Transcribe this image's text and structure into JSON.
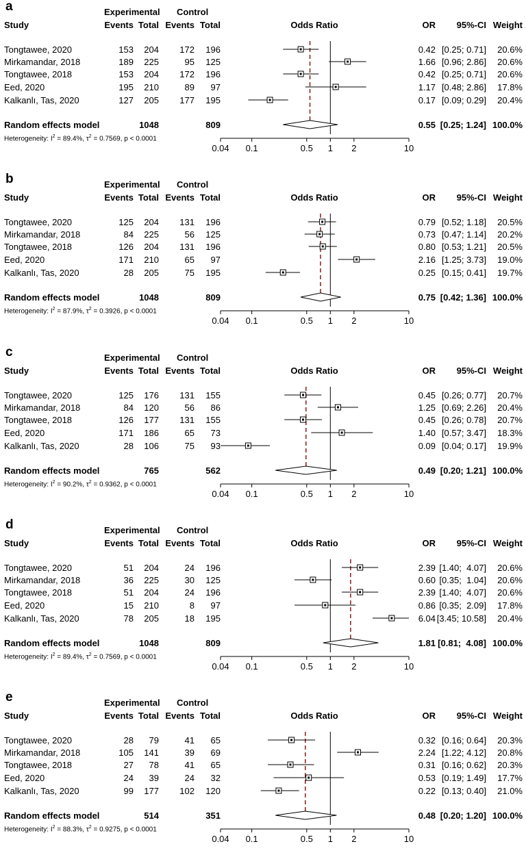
{
  "headers": {
    "experimental": "Experimental",
    "control": "Control",
    "study": "Study",
    "events": "Events",
    "total": "Total",
    "odds_ratio": "Odds Ratio",
    "or": "OR",
    "ci": "95%-CI",
    "weight": "Weight",
    "random_effects": "Random effects model",
    "het_prefix": "Heterogeneity: "
  },
  "axis": {
    "ticks": [
      0.04,
      0.1,
      0.5,
      1,
      2,
      10
    ],
    "tick_labels": [
      "0.04",
      "0.1",
      "0.5",
      "1",
      "2",
      "10"
    ],
    "xlim": [
      0.04,
      10
    ],
    "scale": "log"
  },
  "chart_data": [
    {
      "type": "forest",
      "letter": "a",
      "rows": [
        {
          "study": "Tongtawee, 2020",
          "e_ev": "153",
          "e_tot": "204",
          "c_ev": "172",
          "c_tot": "196",
          "or": 0.42,
          "lo": 0.25,
          "hi": 0.71,
          "or_text": "0.42",
          "ci_text": "[0.25; 0.71]",
          "weight": "20.6%"
        },
        {
          "study": "Mirkamandar, 2018",
          "e_ev": "189",
          "e_tot": "225",
          "c_ev": "95",
          "c_tot": "125",
          "or": 1.66,
          "lo": 0.96,
          "hi": 2.86,
          "or_text": "1.66",
          "ci_text": "[0.96; 2.86]",
          "weight": "20.6%"
        },
        {
          "study": "Tongtawee, 2018",
          "e_ev": "153",
          "e_tot": "204",
          "c_ev": "172",
          "c_tot": "196",
          "or": 0.42,
          "lo": 0.25,
          "hi": 0.71,
          "or_text": "0.42",
          "ci_text": "[0.25; 0.71]",
          "weight": "20.6%"
        },
        {
          "study": "Eed, 2020",
          "e_ev": "195",
          "e_tot": "210",
          "c_ev": "89",
          "c_tot": "97",
          "or": 1.17,
          "lo": 0.48,
          "hi": 2.86,
          "or_text": "1.17",
          "ci_text": "[0.48; 2.86]",
          "weight": "17.8%"
        },
        {
          "study": "Kalkanlı, Tas, 2020",
          "e_ev": "127",
          "e_tot": "205",
          "c_ev": "177",
          "c_tot": "195",
          "or": 0.17,
          "lo": 0.09,
          "hi": 0.29,
          "or_text": "0.17",
          "ci_text": "[0.09; 0.29]",
          "weight": "20.4%"
        }
      ],
      "pooled": {
        "e_tot": "1048",
        "c_tot": "809",
        "or": 0.55,
        "lo": 0.25,
        "hi": 1.24,
        "or_text": "0.55",
        "ci_text": "[0.25; 1.24]",
        "weight": "100.0%"
      },
      "heterogeneity": {
        "i2": "89.4%",
        "tau2": "0.7569",
        "p": "p < 0.0001"
      }
    },
    {
      "type": "forest",
      "letter": "b",
      "rows": [
        {
          "study": "Tongtawee, 2020",
          "e_ev": "125",
          "e_tot": "204",
          "c_ev": "131",
          "c_tot": "196",
          "or": 0.79,
          "lo": 0.52,
          "hi": 1.18,
          "or_text": "0.79",
          "ci_text": "[0.52; 1.18]",
          "weight": "20.5%"
        },
        {
          "study": "Mirkamandar, 2018",
          "e_ev": "84",
          "e_tot": "225",
          "c_ev": "56",
          "c_tot": "125",
          "or": 0.73,
          "lo": 0.47,
          "hi": 1.14,
          "or_text": "0.73",
          "ci_text": "[0.47; 1.14]",
          "weight": "20.2%"
        },
        {
          "study": "Tongtawee, 2018",
          "e_ev": "126",
          "e_tot": "204",
          "c_ev": "131",
          "c_tot": "196",
          "or": 0.8,
          "lo": 0.53,
          "hi": 1.21,
          "or_text": "0.80",
          "ci_text": "[0.53; 1.21]",
          "weight": "20.5%"
        },
        {
          "study": "Eed, 2020",
          "e_ev": "171",
          "e_tot": "210",
          "c_ev": "65",
          "c_tot": "97",
          "or": 2.16,
          "lo": 1.25,
          "hi": 3.73,
          "or_text": "2.16",
          "ci_text": "[1.25; 3.73]",
          "weight": "19.0%"
        },
        {
          "study": "Kalkanlı, Tas, 2020",
          "e_ev": "28",
          "e_tot": "205",
          "c_ev": "75",
          "c_tot": "195",
          "or": 0.25,
          "lo": 0.15,
          "hi": 0.41,
          "or_text": "0.25",
          "ci_text": "[0.15; 0.41]",
          "weight": "19.7%"
        }
      ],
      "pooled": {
        "e_tot": "1048",
        "c_tot": "809",
        "or": 0.75,
        "lo": 0.42,
        "hi": 1.36,
        "or_text": "0.75",
        "ci_text": "[0.42; 1.36]",
        "weight": "100.0%"
      },
      "heterogeneity": {
        "i2": "87.9%",
        "tau2": "0.3926",
        "p": "p < 0.0001"
      }
    },
    {
      "type": "forest",
      "letter": "c",
      "rows": [
        {
          "study": "Tongtawee, 2020",
          "e_ev": "125",
          "e_tot": "176",
          "c_ev": "131",
          "c_tot": "155",
          "or": 0.45,
          "lo": 0.26,
          "hi": 0.77,
          "or_text": "0.45",
          "ci_text": "[0.26; 0.77]",
          "weight": "20.7%"
        },
        {
          "study": "Mirkamandar, 2018",
          "e_ev": "84",
          "e_tot": "120",
          "c_ev": "56",
          "c_tot": "86",
          "or": 1.25,
          "lo": 0.69,
          "hi": 2.26,
          "or_text": "1.25",
          "ci_text": "[0.69; 2.26]",
          "weight": "20.4%"
        },
        {
          "study": "Tongtawee, 2018",
          "e_ev": "126",
          "e_tot": "177",
          "c_ev": "131",
          "c_tot": "155",
          "or": 0.45,
          "lo": 0.26,
          "hi": 0.78,
          "or_text": "0.45",
          "ci_text": "[0.26; 0.78]",
          "weight": "20.7%"
        },
        {
          "study": "Eed, 2020",
          "e_ev": "171",
          "e_tot": "186",
          "c_ev": "65",
          "c_tot": "73",
          "or": 1.4,
          "lo": 0.57,
          "hi": 3.47,
          "or_text": "1.40",
          "ci_text": "[0.57; 3.47]",
          "weight": "18.3%"
        },
        {
          "study": "Kalkanlı, Tas, 2020",
          "e_ev": "28",
          "e_tot": "106",
          "c_ev": "75",
          "c_tot": "93",
          "or": 0.09,
          "lo": 0.04,
          "hi": 0.17,
          "or_text": "0.09",
          "ci_text": "[0.04; 0.17]",
          "weight": "19.9%"
        }
      ],
      "pooled": {
        "e_tot": "765",
        "c_tot": "562",
        "or": 0.49,
        "lo": 0.2,
        "hi": 1.21,
        "or_text": "0.49",
        "ci_text": "[0.20; 1.21]",
        "weight": "100.0%"
      },
      "heterogeneity": {
        "i2": "90.2%",
        "tau2": "0.9362",
        "p": "p < 0.0001"
      }
    },
    {
      "type": "forest",
      "letter": "d",
      "rows": [
        {
          "study": "Tongtawee, 2020",
          "e_ev": "51",
          "e_tot": "204",
          "c_ev": "24",
          "c_tot": "196",
          "or": 2.39,
          "lo": 1.4,
          "hi": 4.07,
          "or_text": "2.39",
          "ci_text": "[1.40;  4.07]",
          "weight": "20.6%"
        },
        {
          "study": "Mirkamandar, 2018",
          "e_ev": "36",
          "e_tot": "225",
          "c_ev": "30",
          "c_tot": "125",
          "or": 0.6,
          "lo": 0.35,
          "hi": 1.04,
          "or_text": "0.60",
          "ci_text": "[0.35;  1.04]",
          "weight": "20.6%"
        },
        {
          "study": "Tongtawee, 2018",
          "e_ev": "51",
          "e_tot": "204",
          "c_ev": "24",
          "c_tot": "196",
          "or": 2.39,
          "lo": 1.4,
          "hi": 4.07,
          "or_text": "2.39",
          "ci_text": "[1.40;  4.07]",
          "weight": "20.6%"
        },
        {
          "study": "Eed, 2020",
          "e_ev": "15",
          "e_tot": "210",
          "c_ev": "8",
          "c_tot": "97",
          "or": 0.86,
          "lo": 0.35,
          "hi": 2.09,
          "or_text": "0.86",
          "ci_text": "[0.35;  2.09]",
          "weight": "17.8%"
        },
        {
          "study": "Kalkanlı, Tas, 2020",
          "e_ev": "78",
          "e_tot": "205",
          "c_ev": "18",
          "c_tot": "195",
          "or": 6.04,
          "lo": 3.45,
          "hi": 10.58,
          "or_text": "6.04",
          "ci_text": "[3.45; 10.58]",
          "weight": "20.4%"
        }
      ],
      "pooled": {
        "e_tot": "1048",
        "c_tot": "809",
        "or": 1.81,
        "lo": 0.81,
        "hi": 4.08,
        "or_text": "1.81",
        "ci_text": "[0.81;  4.08]",
        "weight": "100.0%"
      },
      "heterogeneity": {
        "i2": "89.4%",
        "tau2": "0.7569",
        "p": "p < 0.0001"
      }
    },
    {
      "type": "forest",
      "letter": "e",
      "rows": [
        {
          "study": "Tongtawee, 2020",
          "e_ev": "28",
          "e_tot": "79",
          "c_ev": "41",
          "c_tot": "65",
          "or": 0.32,
          "lo": 0.16,
          "hi": 0.64,
          "or_text": "0.32",
          "ci_text": "[0.16; 0.64]",
          "weight": "20.3%"
        },
        {
          "study": "Mirkamandar, 2018",
          "e_ev": "105",
          "e_tot": "141",
          "c_ev": "39",
          "c_tot": "69",
          "or": 2.24,
          "lo": 1.22,
          "hi": 4.12,
          "or_text": "2.24",
          "ci_text": "[1.22; 4.12]",
          "weight": "20.8%"
        },
        {
          "study": "Tongtawee, 2018",
          "e_ev": "27",
          "e_tot": "78",
          "c_ev": "41",
          "c_tot": "65",
          "or": 0.31,
          "lo": 0.16,
          "hi": 0.62,
          "or_text": "0.31",
          "ci_text": "[0.16; 0.62]",
          "weight": "20.3%"
        },
        {
          "study": "Eed, 2020",
          "e_ev": "24",
          "e_tot": "39",
          "c_ev": "24",
          "c_tot": "32",
          "or": 0.53,
          "lo": 0.19,
          "hi": 1.49,
          "or_text": "0.53",
          "ci_text": "[0.19; 1.49]",
          "weight": "17.7%"
        },
        {
          "study": "Kalkanlı, Tas, 2020",
          "e_ev": "99",
          "e_tot": "177",
          "c_ev": "102",
          "c_tot": "120",
          "or": 0.22,
          "lo": 0.13,
          "hi": 0.4,
          "or_text": "0.22",
          "ci_text": "[0.13; 0.40]",
          "weight": "21.0%"
        }
      ],
      "pooled": {
        "e_tot": "514",
        "c_tot": "351",
        "or": 0.48,
        "lo": 0.2,
        "hi": 1.2,
        "or_text": "0.48",
        "ci_text": "[0.20; 1.20]",
        "weight": "100.0%"
      },
      "heterogeneity": {
        "i2": "88.3%",
        "tau2": "0.9275",
        "p": "p < 0.0001"
      }
    }
  ]
}
